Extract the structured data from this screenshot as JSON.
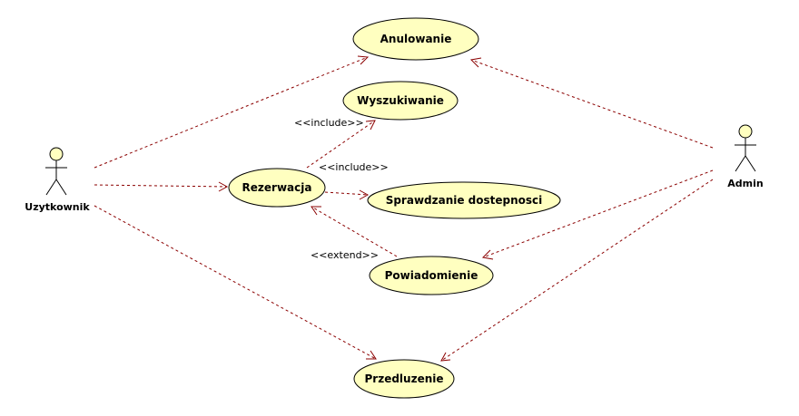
{
  "actors": {
    "user": "Uzytkownik",
    "admin": "Admin"
  },
  "use_cases": {
    "anulowanie": "Anulowanie",
    "wyszukiwanie": "Wyszukiwanie",
    "rezerwacja": "Rezerwacja",
    "sprawdzanie": "Sprawdzanie dostepnosci",
    "powiadomienie": "Powiadomienie",
    "przedluzenie": "Przedluzenie"
  },
  "stereotypes": {
    "include_wyszukiwanie": "<<include>>",
    "include_sprawdzanie": "<<include>>",
    "extend_powiadomienie": "<<extend>>"
  },
  "colors": {
    "use_case_fill": "#ffffc0",
    "connector": "#8b0000"
  }
}
